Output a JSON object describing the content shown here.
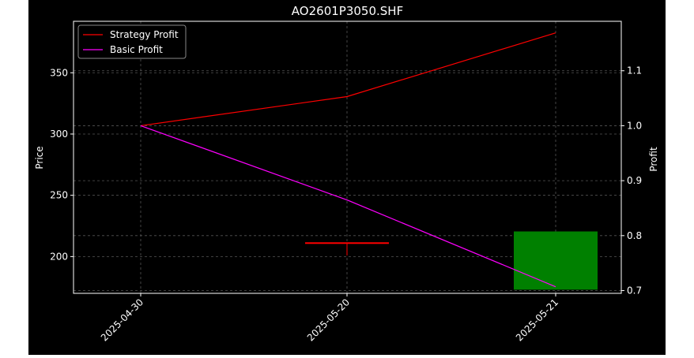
{
  "chart_data": {
    "type": "candlestick",
    "title": "AO2601P3050.SHF",
    "ylabel": "Price",
    "y2label": "Profit",
    "categories": [
      "2025-04-30",
      "2025-05-20",
      "2025-05-21"
    ],
    "ylim": [
      170,
      392
    ],
    "y2lim": [
      0.695,
      1.19
    ],
    "yticks": [
      200,
      250,
      300,
      350
    ],
    "y2ticks": [
      0.7,
      0.8,
      0.9,
      1.0,
      1.1
    ],
    "grid": true,
    "legend_position": "top-left",
    "candles": [
      {
        "x": "2025-05-20",
        "open": 211,
        "close": 211,
        "high": 211,
        "low": 201,
        "color": "#ff0000"
      },
      {
        "x": "2025-05-21",
        "open": 220.5,
        "close": 173,
        "high": 220.5,
        "low": 173,
        "color": "#008000"
      }
    ],
    "series": [
      {
        "name": "Strategy Profit",
        "axis": "right",
        "color": "#ff0000",
        "values": [
          1.0,
          1.053,
          1.169
        ]
      },
      {
        "name": "Basic Profit",
        "axis": "right",
        "color": "#ff00ff",
        "values": [
          1.0,
          0.865,
          0.707
        ]
      }
    ]
  }
}
